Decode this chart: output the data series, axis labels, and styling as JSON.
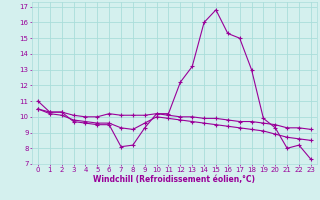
{
  "xlabel": "Windchill (Refroidissement éolien,°C)",
  "ylabel": "",
  "background_color": "#d4f0ee",
  "grid_color": "#aaddda",
  "line_color": "#990099",
  "xlim": [
    -0.5,
    23.5
  ],
  "ylim": [
    7,
    17.3
  ],
  "yticks": [
    7,
    8,
    9,
    10,
    11,
    12,
    13,
    14,
    15,
    16,
    17
  ],
  "xticks": [
    0,
    1,
    2,
    3,
    4,
    5,
    6,
    7,
    8,
    9,
    10,
    11,
    12,
    13,
    14,
    15,
    16,
    17,
    18,
    19,
    20,
    21,
    22,
    23
  ],
  "series1_x": [
    0,
    1,
    2,
    3,
    4,
    5,
    6,
    7,
    8,
    9,
    10,
    11,
    12,
    13,
    14,
    15,
    16,
    17,
    18,
    19,
    20,
    21,
    22,
    23
  ],
  "series1_y": [
    11.0,
    10.3,
    10.3,
    9.7,
    9.6,
    9.5,
    9.5,
    8.1,
    8.2,
    9.3,
    10.2,
    10.2,
    12.2,
    13.2,
    16.0,
    16.8,
    15.3,
    15.0,
    13.0,
    9.9,
    9.3,
    8.0,
    8.2,
    7.3
  ],
  "series2_x": [
    0,
    1,
    2,
    3,
    4,
    5,
    6,
    7,
    8,
    9,
    10,
    11,
    12,
    13,
    14,
    15,
    16,
    17,
    18,
    19,
    20,
    21,
    22,
    23
  ],
  "series2_y": [
    10.5,
    10.3,
    10.3,
    10.1,
    10.0,
    10.0,
    10.2,
    10.1,
    10.1,
    10.1,
    10.2,
    10.1,
    10.0,
    10.0,
    9.9,
    9.9,
    9.8,
    9.7,
    9.7,
    9.6,
    9.5,
    9.3,
    9.3,
    9.2
  ],
  "series3_x": [
    0,
    1,
    2,
    3,
    4,
    5,
    6,
    7,
    8,
    9,
    10,
    11,
    12,
    13,
    14,
    15,
    16,
    17,
    18,
    19,
    20,
    21,
    22,
    23
  ],
  "series3_y": [
    10.5,
    10.2,
    10.1,
    9.8,
    9.7,
    9.6,
    9.6,
    9.3,
    9.2,
    9.6,
    10.0,
    9.9,
    9.8,
    9.7,
    9.6,
    9.5,
    9.4,
    9.3,
    9.2,
    9.1,
    8.9,
    8.7,
    8.6,
    8.5
  ],
  "tick_fontsize": 5.0,
  "xlabel_fontsize": 5.5,
  "lw": 0.8,
  "ms": 2.5
}
